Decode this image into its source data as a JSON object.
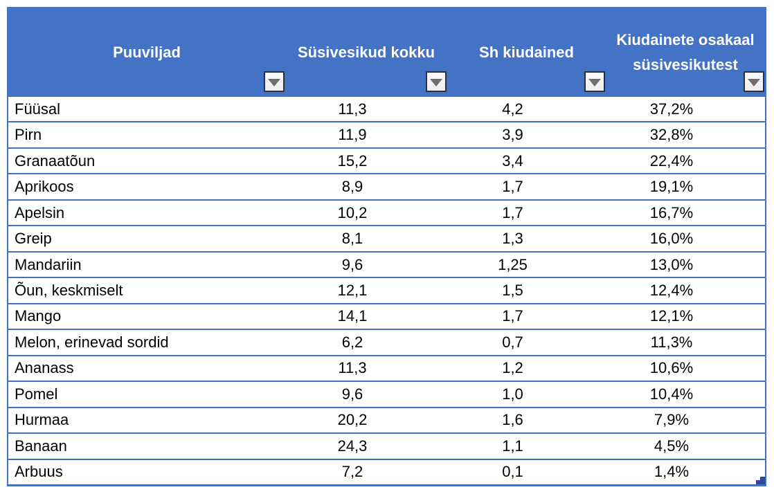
{
  "colors": {
    "header_bg": "#4472C4",
    "header_text": "#FFFFFF",
    "grid_border": "#4472C4",
    "row_bg": "#FFFFFF",
    "body_text": "#000000",
    "filter_button_bg": "#F1F1F1",
    "filter_button_border": "#26313F",
    "filter_arrow": "#6E6E6E",
    "resize_handle": "#2F4699"
  },
  "icons": {
    "filter": "triangle-down-icon"
  },
  "table": {
    "headers": [
      {
        "label": "Puuviljad"
      },
      {
        "label": "Süsivesikud kokku"
      },
      {
        "label": "Sh kiudained"
      },
      {
        "label": "Kiudainete osakaal süsivesikutest"
      }
    ],
    "rows": [
      {
        "fruit": "Füüsal",
        "carbs": "11,3",
        "fiber": "4,2",
        "share": "37,2%"
      },
      {
        "fruit": "Pirn",
        "carbs": "11,9",
        "fiber": "3,9",
        "share": "32,8%"
      },
      {
        "fruit": "Granaatõun",
        "carbs": "15,2",
        "fiber": "3,4",
        "share": "22,4%"
      },
      {
        "fruit": "Aprikoos",
        "carbs": "8,9",
        "fiber": "1,7",
        "share": "19,1%"
      },
      {
        "fruit": "Apelsin",
        "carbs": "10,2",
        "fiber": "1,7",
        "share": "16,7%"
      },
      {
        "fruit": "Greip",
        "carbs": "8,1",
        "fiber": "1,3",
        "share": "16,0%"
      },
      {
        "fruit": "Mandariin",
        "carbs": "9,6",
        "fiber": "1,25",
        "share": "13,0%"
      },
      {
        "fruit": "Õun, keskmiselt",
        "carbs": "12,1",
        "fiber": "1,5",
        "share": "12,4%"
      },
      {
        "fruit": "Mango",
        "carbs": "14,1",
        "fiber": "1,7",
        "share": "12,1%"
      },
      {
        "fruit": "Melon, erinevad sordid",
        "carbs": "6,2",
        "fiber": "0,7",
        "share": "11,3%"
      },
      {
        "fruit": "Ananass",
        "carbs": "11,3",
        "fiber": "1,2",
        "share": "10,6%"
      },
      {
        "fruit": "Pomel",
        "carbs": "9,6",
        "fiber": "1,0",
        "share": "10,4%"
      },
      {
        "fruit": "Hurmaa",
        "carbs": "20,2",
        "fiber": "1,6",
        "share": "7,9%"
      },
      {
        "fruit": "Banaan",
        "carbs": "24,3",
        "fiber": "1,1",
        "share": "4,5%"
      },
      {
        "fruit": "Arbuus",
        "carbs": "7,2",
        "fiber": "0,1",
        "share": "1,4%"
      }
    ]
  }
}
